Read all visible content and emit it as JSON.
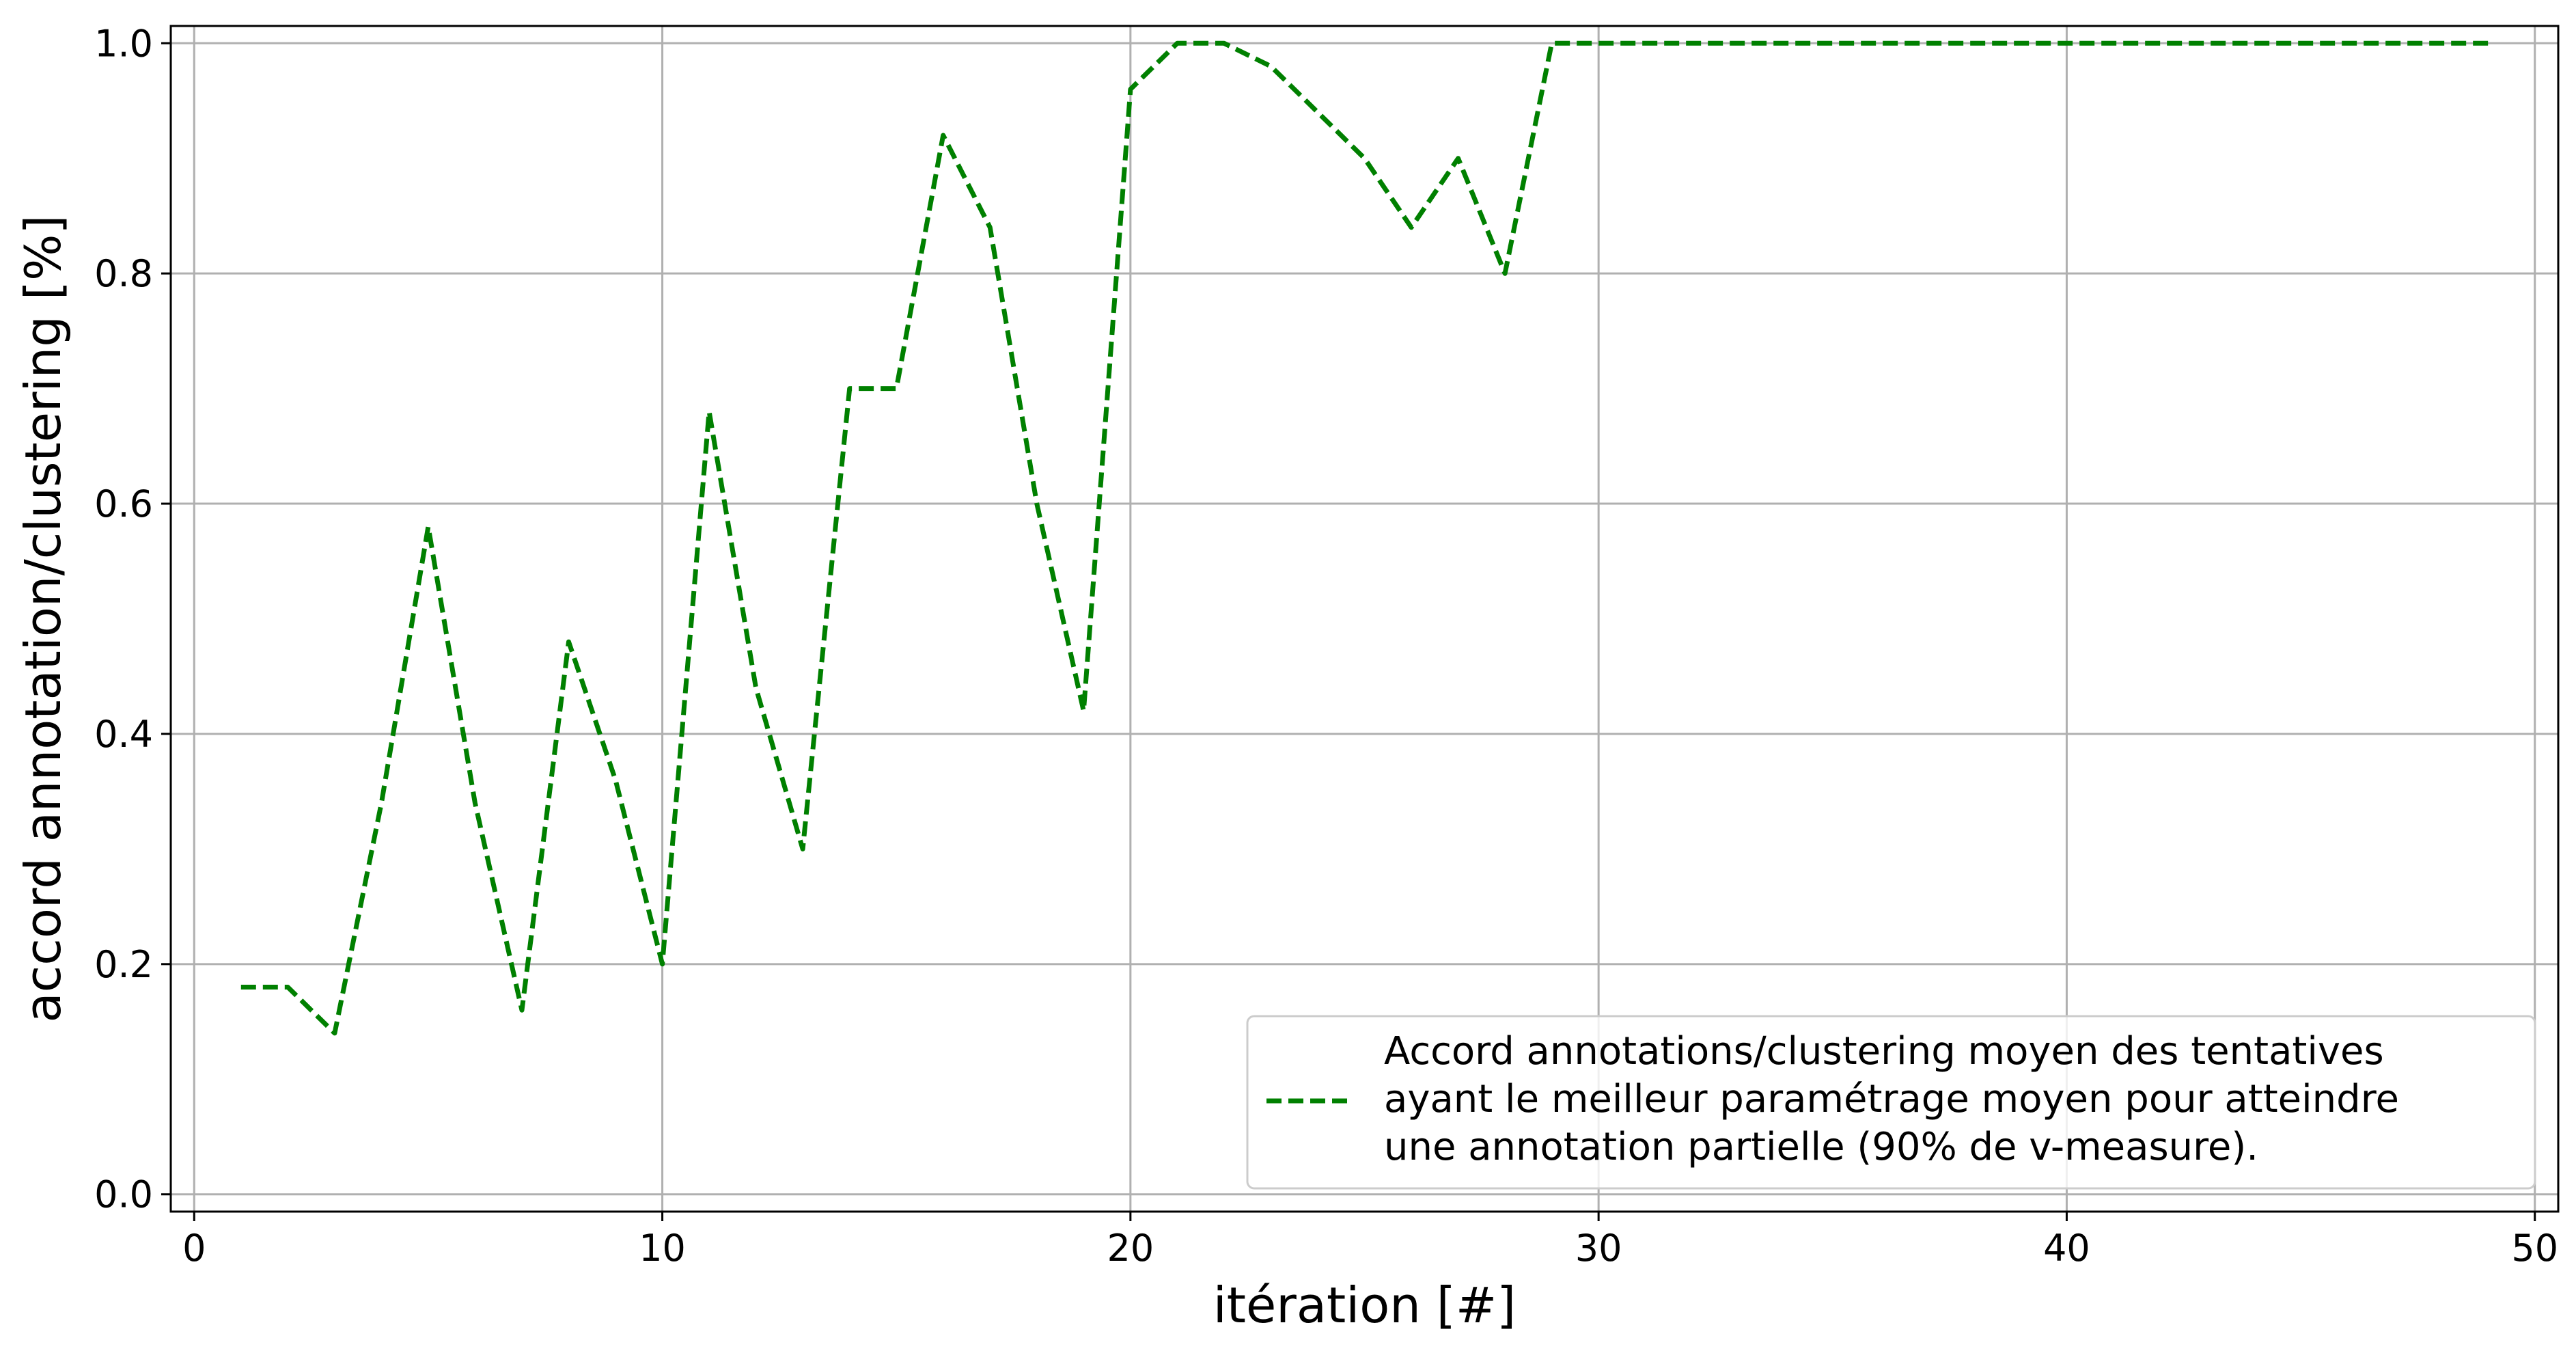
{
  "chart_data": {
    "type": "line",
    "xlabel": "itération [#]",
    "ylabel": "accord annotation/clustering [%]",
    "xlim": [
      -0.5,
      50.5
    ],
    "ylim": [
      -0.015,
      1.015
    ],
    "xticks": [
      0,
      10,
      20,
      30,
      40,
      50
    ],
    "xtick_labels": [
      "0",
      "10",
      "20",
      "30",
      "40",
      "50"
    ],
    "yticks": [
      0.0,
      0.2,
      0.4,
      0.6,
      0.8,
      1.0
    ],
    "ytick_labels": [
      "0.0",
      "0.2",
      "0.4",
      "0.6",
      "0.8",
      "1.0"
    ],
    "grid": true,
    "legend_position": "lower-right",
    "series": [
      {
        "name": "Accord annotations/clustering moyen des tentatives ayant le meilleur paramétrage moyen pour atteindre une annotation partielle (90% de v-measure).",
        "legend_lines": [
          "Accord annotations/clustering moyen des tentatives",
          "ayant le meilleur paramétrage moyen pour atteindre",
          "une annotation partielle (90% de v-measure)."
        ],
        "color": "#008000",
        "style": "dashed",
        "x": [
          1,
          2,
          3,
          4,
          5,
          6,
          7,
          8,
          9,
          10,
          11,
          12,
          13,
          14,
          15,
          16,
          17,
          18,
          19,
          20,
          21,
          22,
          23,
          24,
          25,
          26,
          27,
          28,
          29,
          30,
          31,
          32,
          33,
          34,
          35,
          36,
          37,
          38,
          39,
          40,
          41,
          42,
          43,
          44,
          45,
          46,
          47,
          48,
          49
        ],
        "y": [
          0.18,
          0.18,
          0.14,
          0.34,
          0.58,
          0.34,
          0.16,
          0.48,
          0.36,
          0.2,
          0.68,
          0.44,
          0.3,
          0.7,
          0.7,
          0.92,
          0.84,
          0.6,
          0.42,
          0.96,
          1.0,
          1.0,
          0.98,
          0.94,
          0.9,
          0.84,
          0.9,
          0.8,
          1.0,
          1.0,
          1.0,
          1.0,
          1.0,
          1.0,
          1.0,
          1.0,
          1.0,
          1.0,
          1.0,
          1.0,
          1.0,
          1.0,
          1.0,
          1.0,
          1.0,
          1.0,
          1.0,
          1.0,
          1.0
        ]
      }
    ]
  }
}
